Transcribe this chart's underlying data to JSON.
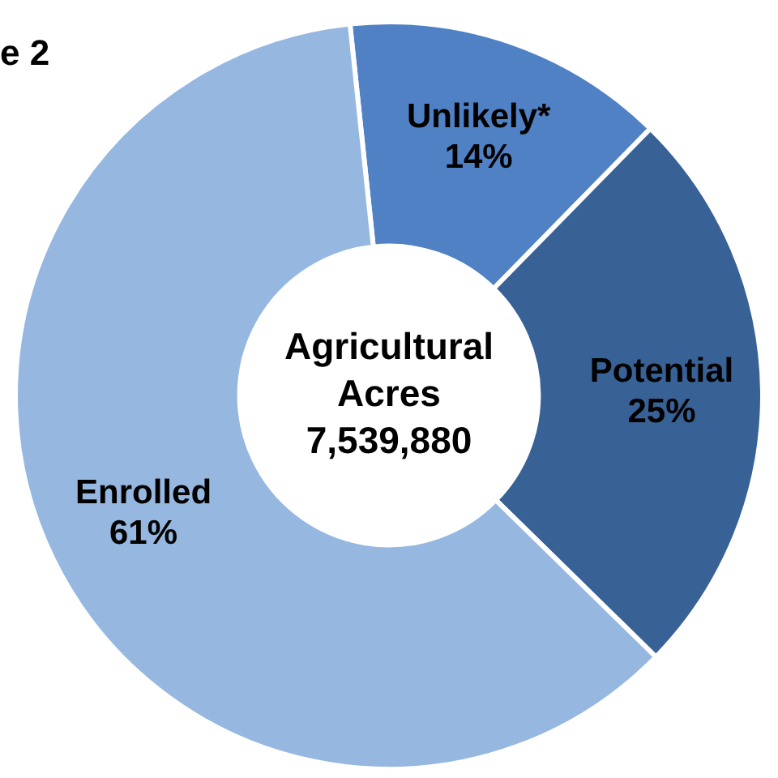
{
  "chart_data": {
    "type": "donut",
    "title": "e 2",
    "categories": [
      "Unlikely*",
      "Potential",
      "Enrolled"
    ],
    "values": [
      14,
      25,
      61
    ],
    "value_labels": [
      "14%",
      "25%",
      "61%"
    ],
    "colors": [
      "#4f81c4",
      "#386196",
      "#95b7e0"
    ],
    "annotations": [
      "Agricultural\nAcres\n7,539,880"
    ],
    "legend": false
  }
}
